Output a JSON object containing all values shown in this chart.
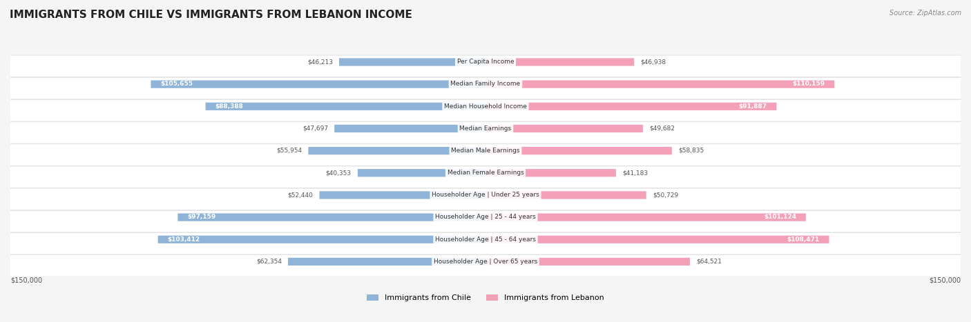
{
  "title": "IMMIGRANTS FROM CHILE VS IMMIGRANTS FROM LEBANON INCOME",
  "source": "Source: ZipAtlas.com",
  "categories": [
    "Per Capita Income",
    "Median Family Income",
    "Median Household Income",
    "Median Earnings",
    "Median Male Earnings",
    "Median Female Earnings",
    "Householder Age | Under 25 years",
    "Householder Age | 25 - 44 years",
    "Householder Age | 45 - 64 years",
    "Householder Age | Over 65 years"
  ],
  "chile_values": [
    46213,
    105655,
    88388,
    47697,
    55954,
    40353,
    52440,
    97159,
    103412,
    62354
  ],
  "lebanon_values": [
    46938,
    110159,
    91887,
    49682,
    58835,
    41183,
    50729,
    101124,
    108471,
    64521
  ],
  "chile_color": "#90b4d8",
  "lebanon_color": "#f4a0b8",
  "chile_label": "Immigrants from Chile",
  "lebanon_label": "Immigrants from Lebanon",
  "chile_color_dark": "#5b8ec4",
  "lebanon_color_dark": "#e8688a",
  "max_val": 150000,
  "background_color": "#f5f5f5",
  "row_bg_color": "#ffffff",
  "alt_row_bg_color": "#f0f0f0"
}
